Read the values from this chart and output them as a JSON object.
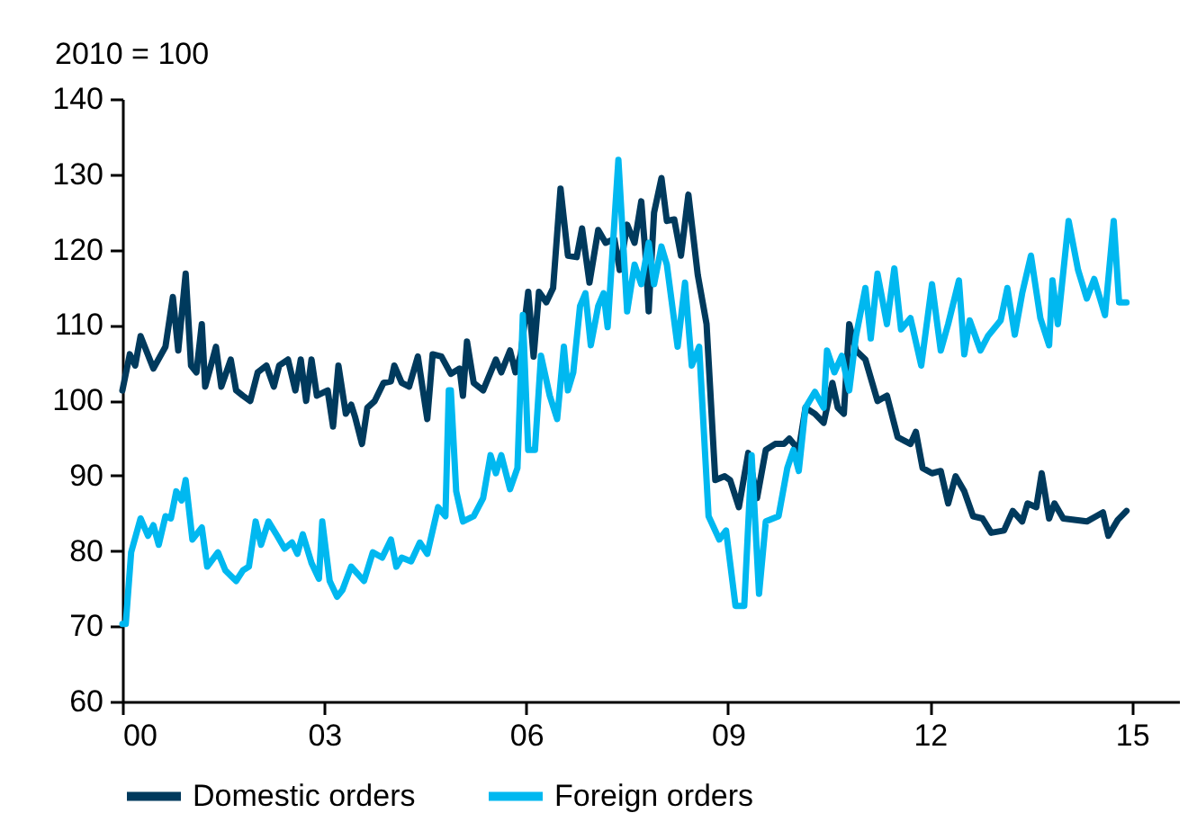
{
  "chart_data": {
    "type": "line",
    "ylabel": "2010 = 100",
    "xlim": [
      2000,
      2015.7
    ],
    "xticks": [
      {
        "value": 2000,
        "label": "00"
      },
      {
        "value": 2003,
        "label": "03"
      },
      {
        "value": 2006,
        "label": "06"
      },
      {
        "value": 2009,
        "label": "09"
      },
      {
        "value": 2012,
        "label": "12"
      },
      {
        "value": 2015,
        "label": "15"
      }
    ],
    "ylim": [
      60,
      140
    ],
    "yticks": [
      60,
      70,
      80,
      90,
      100,
      110,
      120,
      130,
      140
    ],
    "grid": false,
    "legend": "bottom",
    "line_style": "solid",
    "series": [
      {
        "name": "Domestic orders",
        "color": "#003a5d",
        "x": [
          2000.0,
          2000.11,
          2000.19,
          2000.27,
          2000.46,
          2000.64,
          2000.75,
          2000.83,
          2000.94,
          2001.02,
          2001.1,
          2001.18,
          2001.23,
          2001.34,
          2001.39,
          2001.47,
          2001.61,
          2001.69,
          2001.79,
          2001.9,
          2002.01,
          2002.14,
          2002.25,
          2002.33,
          2002.46,
          2002.57,
          2002.65,
          2002.73,
          2002.81,
          2002.89,
          2003.05,
          2003.13,
          2003.21,
          2003.32,
          2003.4,
          2003.46,
          2003.56,
          2003.64,
          2003.75,
          2003.88,
          2003.99,
          2004.04,
          2004.15,
          2004.26,
          2004.39,
          2004.53,
          2004.61,
          2004.74,
          2004.88,
          2005.01,
          2005.06,
          2005.12,
          2005.22,
          2005.36,
          2005.55,
          2005.63,
          2005.76,
          2005.84,
          2005.92,
          2006.03,
          2006.11,
          2006.19,
          2006.3,
          2006.4,
          2006.51,
          2006.62,
          2006.75,
          2006.83,
          2006.94,
          2007.07,
          2007.18,
          2007.31,
          2007.39,
          2007.5,
          2007.61,
          2007.71,
          2007.77,
          2007.82,
          2007.9,
          2008.01,
          2008.09,
          2008.2,
          2008.3,
          2008.41,
          2008.55,
          2008.68,
          2008.81,
          2008.95,
          2009.03,
          2009.16,
          2009.3,
          2009.43,
          2009.56,
          2009.7,
          2009.83,
          2009.91,
          2010.05,
          2010.15,
          2010.29,
          2010.42,
          2010.55,
          2010.63,
          2010.72,
          2010.8,
          2010.9,
          2011.04,
          2011.22,
          2011.36,
          2011.52,
          2011.71,
          2011.79,
          2011.89,
          2012.03,
          2012.16,
          2012.27,
          2012.38,
          2012.51,
          2012.64,
          2012.78,
          2012.91,
          2013.1,
          2013.23,
          2013.37,
          2013.45,
          2013.58,
          2013.66,
          2013.77,
          2013.85,
          2013.98,
          2014.17,
          2014.33,
          2014.47,
          2014.57,
          2014.65,
          2014.79,
          2014.92
        ],
        "values": [
          101.3,
          106.1,
          104.6,
          108.5,
          104.2,
          107.1,
          113.7,
          106.6,
          116.8,
          104.6,
          103.7,
          110.1,
          101.8,
          105.4,
          107.1,
          101.8,
          105.4,
          101.3,
          100.6,
          99.9,
          103.7,
          104.6,
          101.8,
          104.6,
          105.4,
          101.3,
          105.4,
          99.9,
          105.4,
          100.6,
          101.3,
          96.5,
          104.6,
          98.2,
          99.4,
          97.7,
          94.2,
          99,
          99.9,
          102.3,
          102.5,
          104.6,
          102.3,
          101.8,
          105.8,
          97.5,
          106.1,
          105.8,
          103.5,
          104.2,
          100.6,
          107.8,
          102.3,
          101.3,
          105.4,
          103.7,
          106.6,
          103.7,
          106.1,
          114.4,
          105.8,
          114.4,
          113,
          114.9,
          128.1,
          119.2,
          119,
          122.8,
          115.6,
          122.6,
          120.9,
          121.4,
          117.3,
          123.3,
          120.9,
          126.4,
          119.7,
          111.8,
          124.9,
          129.5,
          123.8,
          124,
          119.2,
          127.3,
          116.6,
          110.1,
          89.4,
          89.9,
          89.4,
          85.8,
          93,
          87,
          93.4,
          94.2,
          94.2,
          94.9,
          93.4,
          99,
          98.2,
          97,
          102.3,
          99,
          98.2,
          110.1,
          106.6,
          105.4,
          99.9,
          100.6,
          95.1,
          94.2,
          95.8,
          91,
          90.3,
          90.6,
          86.3,
          89.9,
          87.9,
          84.6,
          84.3,
          82.4,
          82.7,
          85.3,
          83.9,
          86.3,
          85.8,
          90.3,
          84.3,
          86.3,
          84.3,
          84.1,
          83.9,
          84.6,
          85.1,
          82,
          84.1,
          85.3
        ]
      },
      {
        "name": "Foreign orders",
        "color": "#00b8f0",
        "x": [
          2000.0,
          2000.05,
          2000.13,
          2000.27,
          2000.38,
          2000.46,
          2000.54,
          2000.64,
          2000.72,
          2000.8,
          2000.88,
          2000.94,
          2001.04,
          2001.18,
          2001.26,
          2001.42,
          2001.53,
          2001.69,
          2001.79,
          2001.88,
          2001.98,
          2002.06,
          2002.17,
          2002.3,
          2002.41,
          2002.52,
          2002.6,
          2002.68,
          2002.81,
          2002.92,
          2002.97,
          2003.08,
          2003.19,
          2003.27,
          2003.4,
          2003.59,
          2003.72,
          2003.86,
          2003.99,
          2004.07,
          2004.15,
          2004.29,
          2004.42,
          2004.53,
          2004.69,
          2004.8,
          2004.85,
          2004.88,
          2004.96,
          2005.06,
          2005.22,
          2005.36,
          2005.47,
          2005.55,
          2005.63,
          2005.76,
          2005.87,
          2005.95,
          2006.03,
          2006.13,
          2006.22,
          2006.35,
          2006.46,
          2006.56,
          2006.62,
          2006.7,
          2006.8,
          2006.88,
          2006.96,
          2007.07,
          2007.15,
          2007.21,
          2007.37,
          2007.5,
          2007.61,
          2007.71,
          2007.82,
          2007.9,
          2008.01,
          2008.09,
          2008.25,
          2008.36,
          2008.46,
          2008.57,
          2008.71,
          2008.87,
          2008.97,
          2009.11,
          2009.24,
          2009.35,
          2009.46,
          2009.56,
          2009.75,
          2009.88,
          2009.97,
          2010.05,
          2010.15,
          2010.29,
          2010.42,
          2010.47,
          2010.58,
          2010.69,
          2010.8,
          2010.9,
          2011.04,
          2011.12,
          2011.22,
          2011.36,
          2011.47,
          2011.57,
          2011.71,
          2011.87,
          2012.03,
          2012.16,
          2012.27,
          2012.43,
          2012.51,
          2012.59,
          2012.75,
          2012.86,
          2013.05,
          2013.15,
          2013.26,
          2013.37,
          2013.5,
          2013.64,
          2013.77,
          2013.82,
          2013.9,
          2014.06,
          2014.2,
          2014.33,
          2014.44,
          2014.6,
          2014.73,
          2014.81,
          2014.92
        ],
        "values": [
          70.3,
          70.3,
          79.8,
          84.3,
          82,
          83.4,
          80.8,
          84.6,
          84.3,
          87.9,
          86.7,
          89.4,
          81.5,
          83.1,
          77.9,
          79.8,
          77.4,
          76,
          77.4,
          77.9,
          83.9,
          80.8,
          83.9,
          82,
          80.3,
          81.1,
          79.6,
          82.2,
          78.4,
          76.3,
          83.9,
          76,
          73.9,
          74.8,
          77.9,
          76,
          79.8,
          79.1,
          81.5,
          77.9,
          79.1,
          78.6,
          81.1,
          79.6,
          85.8,
          84.6,
          101.3,
          101.3,
          87.9,
          83.9,
          84.6,
          87,
          92.7,
          90.3,
          92.7,
          88.2,
          91,
          111.3,
          93.4,
          93.4,
          105.9,
          100.6,
          97.5,
          107.1,
          101.3,
          103.7,
          112.5,
          114.2,
          107.3,
          112.5,
          114.2,
          109.7,
          131.9,
          111.8,
          118,
          115.4,
          120.9,
          115.4,
          120.4,
          118,
          107.1,
          115.6,
          104.6,
          107.1,
          84.6,
          81.5,
          82.7,
          72.7,
          72.7,
          92.7,
          74.3,
          83.9,
          84.6,
          91,
          93.4,
          90.6,
          99,
          101.1,
          99,
          106.6,
          103.7,
          105.9,
          101.3,
          108.5,
          114.9,
          108.2,
          116.8,
          110.1,
          117.5,
          109.4,
          110.9,
          104.6,
          115.4,
          106.6,
          110.1,
          115.9,
          106.1,
          110.6,
          106.6,
          108.5,
          110.6,
          114.9,
          108.7,
          114.2,
          119.2,
          110.9,
          107.3,
          115.9,
          110.1,
          123.8,
          117.3,
          113.5,
          116.1,
          111.3,
          123.8,
          113,
          113
        ]
      }
    ]
  }
}
